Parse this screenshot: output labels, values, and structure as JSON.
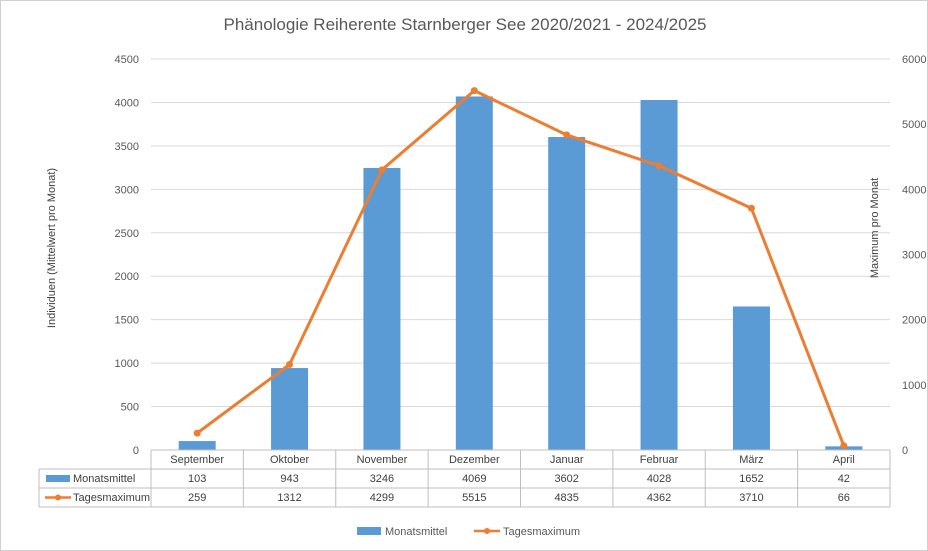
{
  "chart_data": {
    "type": "bar",
    "title": "Phänologie Reiherente Starnberger See 2020/2021 - 2024/2025",
    "categories": [
      "September",
      "Oktober",
      "November",
      "Dezember",
      "Januar",
      "Februar",
      "März",
      "April"
    ],
    "ylabel": "Individuen (Mittelwert pro Monat)",
    "y2label": "Maximum pro Monat",
    "ylim": [
      0,
      4500
    ],
    "y2lim": [
      0,
      6000
    ],
    "yticks": [
      "0",
      "500",
      "1000",
      "1500",
      "2000",
      "2500",
      "3000",
      "3500",
      "4000",
      "4500"
    ],
    "y2ticks": [
      "0",
      "1000",
      "2000",
      "3000",
      "4000",
      "5000",
      "6000"
    ],
    "grid": true,
    "legend": "bottom",
    "series": [
      {
        "name": "Monatsmittel",
        "type": "bar",
        "axis": "left",
        "color": "#5B9BD5",
        "values": [
          103,
          943,
          3246,
          4069,
          3602,
          4028,
          1652,
          42
        ]
      },
      {
        "name": "Tagesmaximum",
        "type": "line",
        "axis": "right",
        "color": "#ED7D31",
        "values": [
          259,
          1312,
          4299,
          5515,
          4835,
          4362,
          3710,
          66
        ]
      }
    ]
  }
}
